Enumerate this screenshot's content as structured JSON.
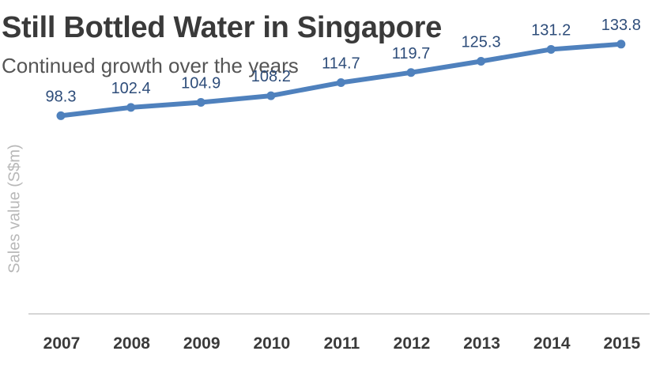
{
  "chart_data": {
    "type": "line",
    "title": "Still Bottled Water in Singapore",
    "subtitle": "Continued growth over the years",
    "ylabel": "Sales value (S$m)",
    "xlabel": "",
    "categories": [
      "2007",
      "2008",
      "2009",
      "2010",
      "2011",
      "2012",
      "2013",
      "2014",
      "2015"
    ],
    "values": [
      98.3,
      102.4,
      104.9,
      108.2,
      114.7,
      119.7,
      125.3,
      131.2,
      133.8
    ],
    "data_labels": [
      "98.3",
      "102.4",
      "104.9",
      "108.2",
      "114.7",
      "119.7",
      "125.3",
      "131.2",
      "133.8"
    ],
    "ylim": [
      0,
      140
    ],
    "grid": false,
    "legend": "none",
    "line_color": "#4f81bd",
    "label_color": "#2e4d7a"
  }
}
